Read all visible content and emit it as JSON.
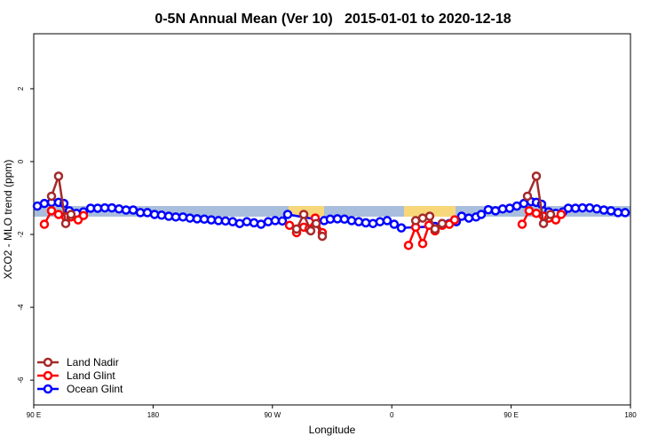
{
  "chart_data": {
    "type": "line",
    "title": "0-5N Annual Mean (Ver 10)   2015-01-01 to 2020-12-18",
    "x_label": "Longitude",
    "y_label": "XCO2 - MLO trend (ppm)",
    "xlim": [
      90,
      540
    ],
    "ylim": [
      -6.68,
      3.51
    ],
    "xticks": [
      {
        "value": 90,
        "label": "90 E"
      },
      180,
      {
        "value": 270,
        "label": "90 W"
      },
      {
        "value": 360,
        "label": "0"
      },
      {
        "value": 450,
        "label": "90 E"
      },
      {
        "value": 540,
        "label": "180"
      }
    ],
    "yticks": [
      -6,
      -4,
      -2,
      0,
      2
    ],
    "legend": "bottom-left",
    "series": [
      {
        "name": "Land Nadir",
        "color": "#a52a2a",
        "x": [
          103.4,
          108.7,
          114.1,
          118.1,
          null,
          288.2,
          293.6,
          298.9,
          303.0,
          307.6,
          null,
          378.0,
          383.3,
          388.6,
          392.6,
          398.0,
          null,
          462.3,
          469.0,
          474.4,
          479.7
        ],
        "values": [
          -0.95,
          -0.4,
          -1.7,
          -1.45,
          null,
          -1.85,
          -1.45,
          -1.9,
          -1.7,
          -2.05,
          null,
          -1.62,
          -1.55,
          -1.5,
          -1.85,
          -1.7,
          null,
          -0.95,
          -0.4,
          -1.7,
          -1.45
        ]
      },
      {
        "name": "Land Glint",
        "color": "#ff0000",
        "x": [
          98.0,
          103.4,
          108.7,
          114.1,
          118.1,
          123.5,
          127.5,
          null,
          282.9,
          288.2,
          293.6,
          297.6,
          302.3,
          307.6,
          null,
          372.6,
          378.0,
          383.3,
          388.0,
          392.6,
          398.0,
          403.4,
          407.4,
          null,
          458.3,
          463.6,
          469.0,
          474.4,
          478.4,
          483.7,
          487.7
        ],
        "values": [
          -1.72,
          -1.35,
          -1.45,
          -1.52,
          -1.52,
          -1.6,
          -1.48,
          null,
          -1.75,
          -1.95,
          -1.8,
          -1.85,
          -1.55,
          -1.95,
          null,
          -2.3,
          -1.8,
          -2.25,
          -1.75,
          -1.9,
          -1.75,
          -1.72,
          -1.6,
          null,
          -1.72,
          -1.35,
          -1.42,
          -1.5,
          -1.55,
          -1.6,
          -1.45
        ]
      },
      {
        "name": "Ocean Glint",
        "color": "#0000ff",
        "x": [
          92.7,
          98.0,
          103.4,
          108.7,
          112.8,
          116.8,
          122.2,
          127.5,
          132.9,
          138.2,
          143.6,
          148.9,
          154.3,
          159.6,
          165.0,
          170.4,
          175.7,
          181.1,
          186.4,
          191.8,
          197.1,
          202.5,
          207.8,
          213.2,
          218.6,
          223.9,
          229.3,
          234.6,
          240.0,
          245.3,
          250.7,
          256.1,
          261.4,
          266.8,
          272.1,
          277.5,
          281.5,
          309.0,
          313.6,
          319.0,
          324.3,
          329.7,
          335.1,
          340.4,
          345.8,
          351.1,
          356.5,
          361.8,
          367.2,
          392.6,
          398.0,
          403.4,
          408.7,
          412.7,
          418.1,
          423.5,
          427.5,
          432.8,
          438.2,
          443.6,
          448.9,
          454.3,
          459.6,
          465.0,
          469.0,
          473.0,
          478.4,
          483.7,
          489.1,
          493.1,
          498.5,
          503.8,
          509.2,
          514.6,
          519.9,
          525.3,
          530.6,
          536.0
        ],
        "values": [
          -1.22,
          -1.15,
          -1.12,
          -1.12,
          -1.15,
          -1.35,
          -1.42,
          -1.38,
          -1.28,
          -1.28,
          -1.27,
          -1.27,
          -1.3,
          -1.33,
          -1.33,
          -1.4,
          -1.4,
          -1.45,
          -1.47,
          -1.5,
          -1.52,
          -1.52,
          -1.55,
          -1.57,
          -1.58,
          -1.6,
          -1.62,
          -1.63,
          -1.65,
          -1.7,
          -1.65,
          -1.68,
          -1.72,
          -1.65,
          -1.62,
          -1.63,
          -1.45,
          -1.62,
          -1.58,
          -1.57,
          -1.58,
          -1.62,
          -1.65,
          -1.68,
          -1.7,
          -1.65,
          -1.62,
          -1.72,
          -1.82,
          -1.78,
          -1.7,
          -1.7,
          -1.65,
          -1.5,
          -1.55,
          -1.52,
          -1.45,
          -1.32,
          -1.35,
          -1.3,
          -1.28,
          -1.22,
          -1.15,
          -1.1,
          -1.12,
          -1.17,
          -1.38,
          -1.42,
          -1.38,
          -1.28,
          -1.28,
          -1.27,
          -1.27,
          -1.3,
          -1.33,
          -1.35,
          -1.4,
          -1.4
        ]
      }
    ]
  }
}
